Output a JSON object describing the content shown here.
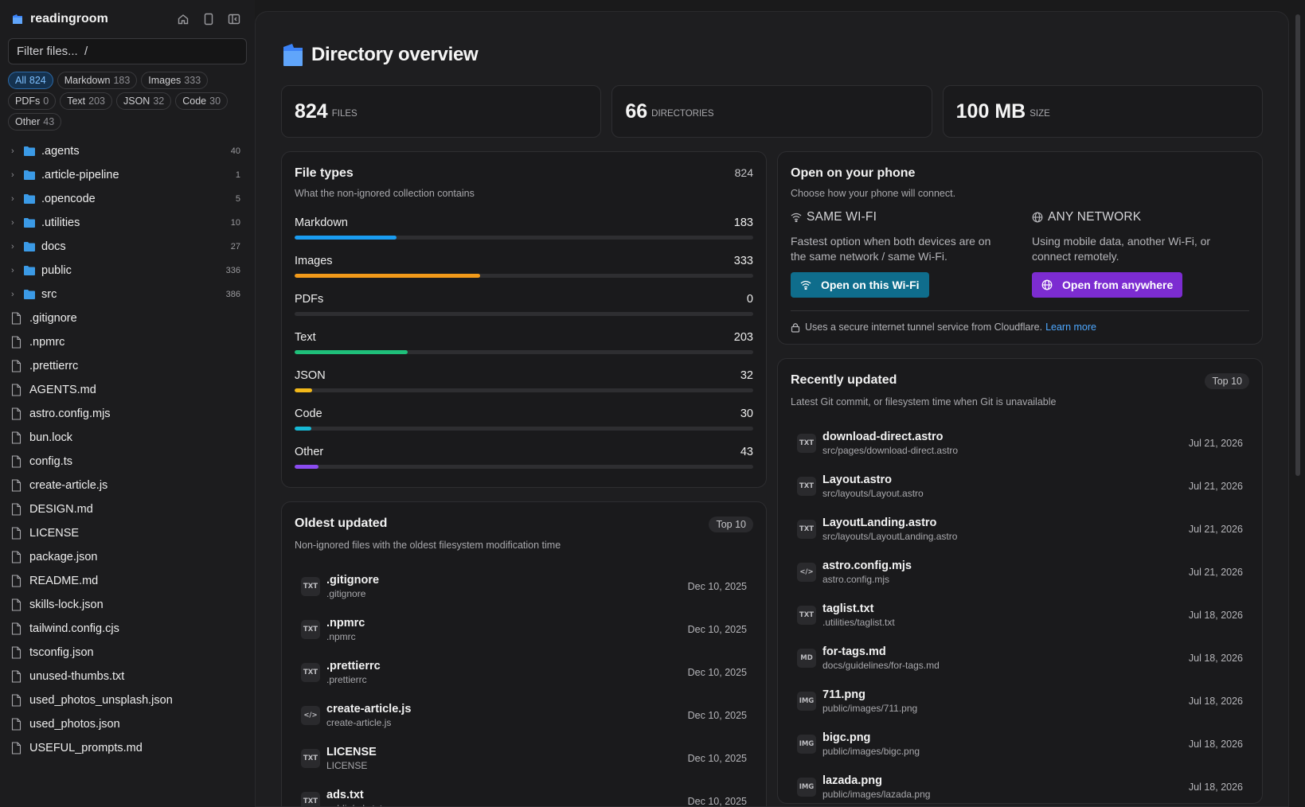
{
  "sidebar": {
    "app_name": "readingroom",
    "filter_placeholder": "Filter files...  /",
    "chips": [
      {
        "label": "All",
        "count": "824",
        "active": true
      },
      {
        "label": "Markdown",
        "count": "183"
      },
      {
        "label": "Images",
        "count": "333"
      },
      {
        "label": "PDFs",
        "count": "0"
      },
      {
        "label": "Text",
        "count": "203"
      },
      {
        "label": "JSON",
        "count": "32"
      },
      {
        "label": "Code",
        "count": "30"
      },
      {
        "label": "Other",
        "count": "43"
      }
    ],
    "folders": [
      {
        "name": ".agents",
        "count": "40"
      },
      {
        "name": ".article-pipeline",
        "count": "1"
      },
      {
        "name": ".opencode",
        "count": "5"
      },
      {
        "name": ".utilities",
        "count": "10"
      },
      {
        "name": "docs",
        "count": "27"
      },
      {
        "name": "public",
        "count": "336"
      },
      {
        "name": "src",
        "count": "386"
      }
    ],
    "files": [
      ".gitignore",
      ".npmrc",
      ".prettierrc",
      "AGENTS.md",
      "astro.config.mjs",
      "bun.lock",
      "config.ts",
      "create-article.js",
      "DESIGN.md",
      "LICENSE",
      "package.json",
      "README.md",
      "skills-lock.json",
      "tailwind.config.cjs",
      "tsconfig.json",
      "unused-thumbs.txt",
      "used_photos_unsplash.json",
      "used_photos.json",
      "USEFUL_prompts.md"
    ]
  },
  "main": {
    "title": "Directory overview",
    "stats": [
      {
        "value": "824",
        "label": "FILES"
      },
      {
        "value": "66",
        "label": "DIRECTORIES"
      },
      {
        "value": "100 MB",
        "label": "SIZE"
      }
    ],
    "file_types": {
      "title": "File types",
      "subtitle": "What the non-ignored collection contains",
      "total": "824",
      "rows": [
        {
          "label": "Markdown",
          "value": "183",
          "fraction": 0.222,
          "color": "#1a9cf0"
        },
        {
          "label": "Images",
          "value": "333",
          "fraction": 0.404,
          "color": "#f29a1a"
        },
        {
          "label": "PDFs",
          "value": "0",
          "fraction": 0,
          "color": "#e0443e"
        },
        {
          "label": "Text",
          "value": "203",
          "fraction": 0.246,
          "color": "#1fbf7a"
        },
        {
          "label": "JSON",
          "value": "32",
          "fraction": 0.039,
          "color": "#f2b81a"
        },
        {
          "label": "Code",
          "value": "30",
          "fraction": 0.036,
          "color": "#17b8d4"
        },
        {
          "label": "Other",
          "value": "43",
          "fraction": 0.052,
          "color": "#8b4cf0"
        }
      ]
    },
    "oldest": {
      "title": "Oldest updated",
      "subtitle": "Non-ignored files with the oldest filesystem modification time",
      "badge": "Top 10",
      "rows": [
        {
          "type": "TXT",
          "name": ".gitignore",
          "path": ".gitignore",
          "date": "Dec 10, 2025"
        },
        {
          "type": "TXT",
          "name": ".npmrc",
          "path": ".npmrc",
          "date": "Dec 10, 2025"
        },
        {
          "type": "TXT",
          "name": ".prettierrc",
          "path": ".prettierrc",
          "date": "Dec 10, 2025"
        },
        {
          "type": "</>",
          "name": "create-article.js",
          "path": "create-article.js",
          "date": "Dec 10, 2025"
        },
        {
          "type": "TXT",
          "name": "LICENSE",
          "path": "LICENSE",
          "date": "Dec 10, 2025"
        },
        {
          "type": "TXT",
          "name": "ads.txt",
          "path": "public/ads.txt",
          "date": "Dec 10, 2025"
        }
      ]
    },
    "phone": {
      "title": "Open on your phone",
      "subtitle": "Choose how your phone will connect.",
      "wifi": {
        "heading": "SAME WI-FI",
        "desc": "Fastest option when both devices are on the same network / same Wi-Fi.",
        "button": "Open on this Wi-Fi"
      },
      "any": {
        "heading": "ANY NETWORK",
        "desc": "Using mobile data, another Wi-Fi, or connect remotely.",
        "button": "Open from anywhere"
      },
      "secure_text": "Uses a secure internet tunnel service from Cloudflare.",
      "learn_more": "Learn more"
    },
    "recent": {
      "title": "Recently updated",
      "subtitle": "Latest Git commit, or filesystem time when Git is unavailable",
      "badge": "Top 10",
      "rows": [
        {
          "type": "TXT",
          "name": "download-direct.astro",
          "path": "src/pages/download-direct.astro",
          "date": "Jul 21, 2026"
        },
        {
          "type": "TXT",
          "name": "Layout.astro",
          "path": "src/layouts/Layout.astro",
          "date": "Jul 21, 2026"
        },
        {
          "type": "TXT",
          "name": "LayoutLanding.astro",
          "path": "src/layouts/LayoutLanding.astro",
          "date": "Jul 21, 2026"
        },
        {
          "type": "</>",
          "name": "astro.config.mjs",
          "path": "astro.config.mjs",
          "date": "Jul 21, 2026"
        },
        {
          "type": "TXT",
          "name": "taglist.txt",
          "path": ".utilities/taglist.txt",
          "date": "Jul 18, 2026"
        },
        {
          "type": "MD",
          "name": "for-tags.md",
          "path": "docs/guidelines/for-tags.md",
          "date": "Jul 18, 2026"
        },
        {
          "type": "IMG",
          "name": "711.png",
          "path": "public/images/711.png",
          "date": "Jul 18, 2026"
        },
        {
          "type": "IMG",
          "name": "bigc.png",
          "path": "public/images/bigc.png",
          "date": "Jul 18, 2026"
        },
        {
          "type": "IMG",
          "name": "lazada.png",
          "path": "public/images/lazada.png",
          "date": "Jul 18, 2026"
        }
      ]
    }
  },
  "colors": {
    "accent_blue": "#1a9cf0",
    "wifi_button": "#0f6d8c",
    "anywhere_button": "#7c2cd1",
    "link": "#4ea8ff"
  }
}
